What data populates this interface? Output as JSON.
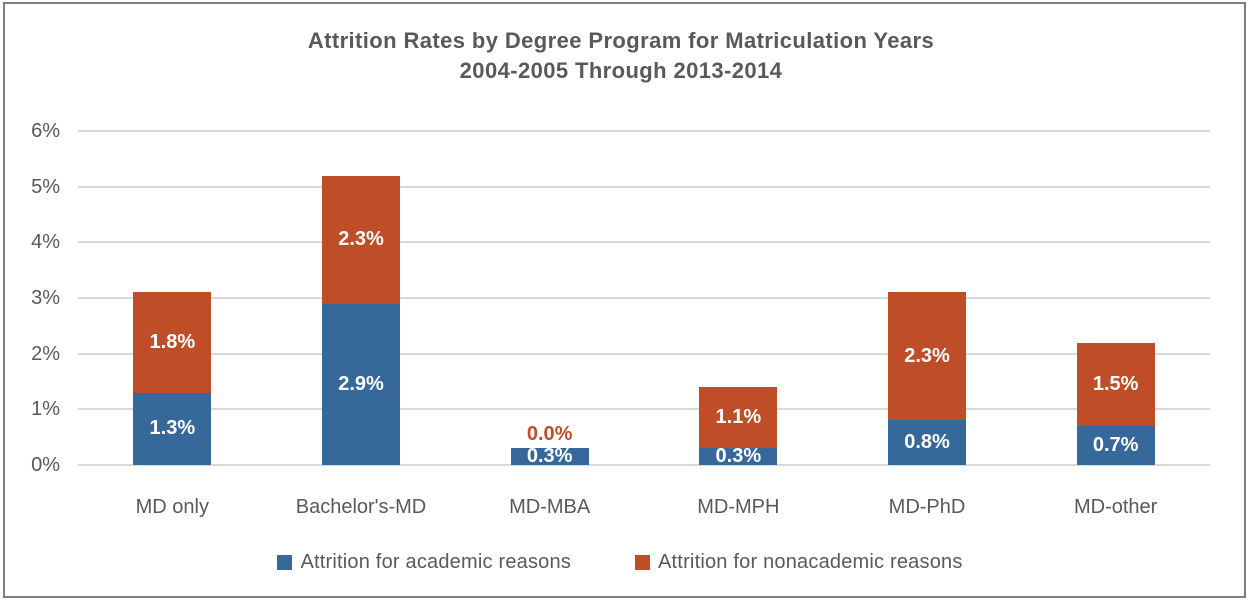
{
  "chart_data": {
    "type": "bar",
    "stacked": true,
    "title_line1": "Attrition Rates by Degree Program for Matriculation Years",
    "title_line2": "2004-2005 Through 2013-2014",
    "categories": [
      "MD only",
      "Bachelor's-MD",
      "MD-MBA",
      "MD-MPH",
      "MD-PhD",
      "MD-other"
    ],
    "series": [
      {
        "name": "Attrition for academic reasons",
        "color": "#37689A",
        "values": [
          1.3,
          2.9,
          0.3,
          0.3,
          0.8,
          0.7
        ],
        "labels": [
          "1.3%",
          "2.9%",
          "0.3%",
          "0.3%",
          "0.8%",
          "0.7%"
        ]
      },
      {
        "name": "Attrition for nonacademic reasons",
        "color": "#BF4D28",
        "values": [
          1.8,
          2.3,
          0.0,
          1.1,
          2.3,
          1.5
        ],
        "labels": [
          "1.8%",
          "2.3%",
          "0.0%",
          "1.1%",
          "2.3%",
          "1.5%"
        ]
      }
    ],
    "y_ticks": [
      "0%",
      "1%",
      "2%",
      "3%",
      "4%",
      "5%",
      "6%"
    ],
    "ylim": [
      0,
      6
    ],
    "grid": true,
    "legend_position": "bottom",
    "colors": {
      "grid": "#D9D9D9",
      "axis_text": "#595959",
      "bar_label": "#FFFFFF",
      "border": "#808080"
    }
  }
}
